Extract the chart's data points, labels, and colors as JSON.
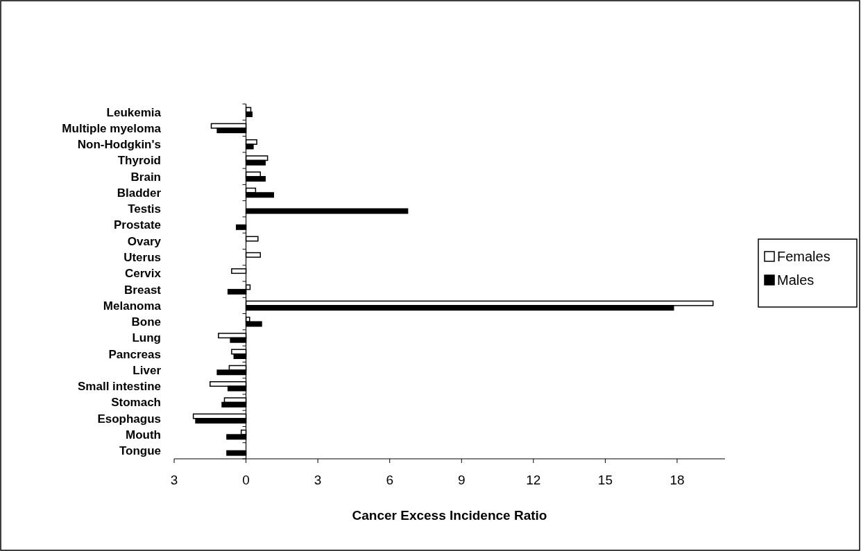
{
  "chart_data": {
    "type": "bar",
    "orientation": "horizontal",
    "xlabel": "Cancer Excess Incidence Ratio",
    "categories": [
      "Leukemia",
      "Multiple myeloma",
      "Non-Hodgkin's",
      "Thyroid",
      "Brain",
      "Bladder",
      "Testis",
      "Prostate",
      "Ovary",
      "Uterus",
      "Cervix",
      "Breast",
      "Melanoma",
      "Bone",
      "Lung",
      "Pancreas",
      "Liver",
      "Small intestine",
      "Stomach",
      "Esophagus",
      "Mouth",
      "Tongue"
    ],
    "series": [
      {
        "name": "Females",
        "color": "#ffffff",
        "values": [
          0.2,
          -1.45,
          0.45,
          0.9,
          0.6,
          0.4,
          null,
          null,
          0.5,
          0.6,
          -0.6,
          0.17,
          19.5,
          0.15,
          -1.15,
          -0.6,
          -0.7,
          -1.5,
          -0.9,
          -2.2,
          -0.2,
          null
        ]
      },
      {
        "name": "Males",
        "color": "#000000",
        "values": [
          0.25,
          -1.2,
          0.3,
          0.8,
          0.8,
          1.15,
          6.75,
          -0.4,
          null,
          null,
          null,
          -0.75,
          17.85,
          0.65,
          -0.65,
          -0.5,
          -1.2,
          -0.75,
          -1.0,
          -2.1,
          -0.8,
          -0.8
        ]
      }
    ],
    "xlim": [
      -3,
      20
    ],
    "xticks": [
      {
        "value": -3,
        "label": "3"
      },
      0,
      3,
      6,
      9,
      12,
      15,
      18
    ],
    "legend": "right"
  }
}
